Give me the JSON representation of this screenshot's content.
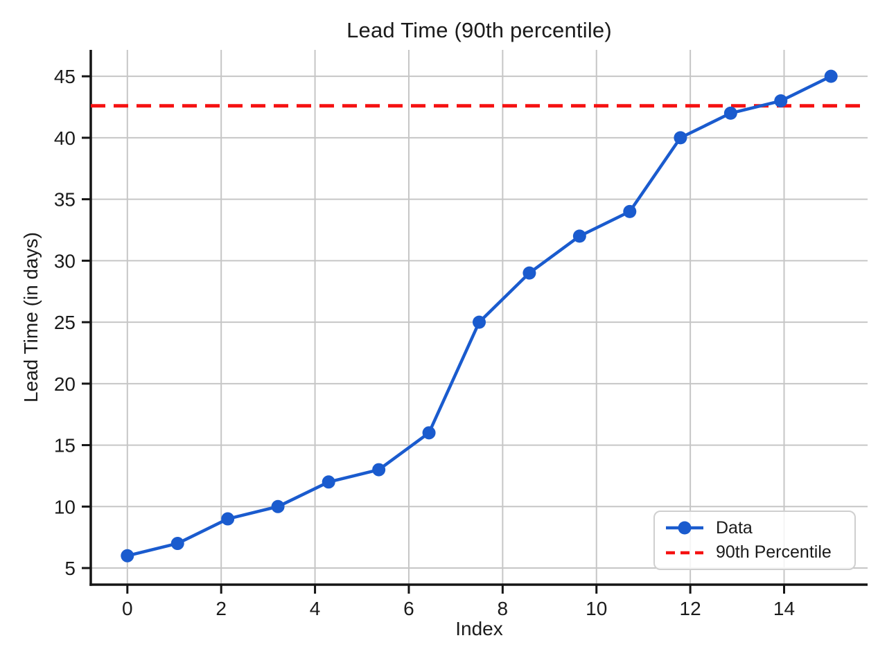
{
  "figure": {
    "title": "Lead Time (90th percentile)"
  },
  "chart_data": {
    "type": "line",
    "title": "Lead Time (90th percentile)",
    "xlabel": "Index",
    "ylabel": "Lead Time (in days)",
    "x": [
      0,
      1.07,
      2.14,
      3.21,
      4.29,
      5.36,
      6.43,
      7.5,
      8.57,
      9.64,
      10.71,
      11.79,
      12.86,
      13.93,
      15
    ],
    "series": [
      {
        "name": "Data",
        "type": "line-markers",
        "color": "#1a5bce",
        "y": [
          6,
          7,
          9,
          10,
          12,
          13,
          16,
          25,
          29,
          32,
          34,
          40,
          42,
          43,
          45
        ]
      },
      {
        "name": "90th Percentile",
        "type": "hline-dashed",
        "color": "#f51111",
        "value": 42.6
      }
    ],
    "x_ticks": [
      0,
      2,
      4,
      6,
      8,
      10,
      12,
      14
    ],
    "y_ticks": [
      5,
      10,
      15,
      20,
      25,
      30,
      35,
      40,
      45
    ],
    "xlim": [
      -0.78,
      15.78
    ],
    "ylim": [
      3.65,
      47.15
    ],
    "grid": true,
    "grid_color": "#c6c6c6",
    "axis_color": "#151515",
    "legend_position": "lower right"
  }
}
